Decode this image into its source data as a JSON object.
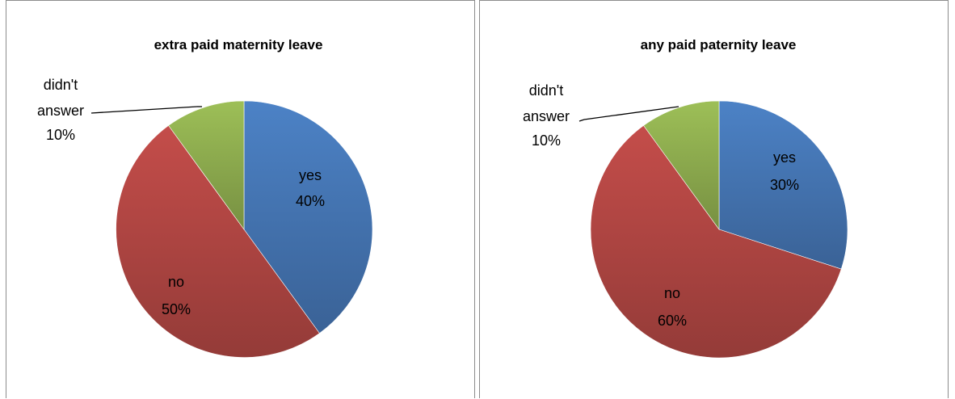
{
  "chart_data": [
    {
      "type": "pie",
      "title": "extra paid maternity leave",
      "slices": [
        {
          "label": "yes",
          "pct_label": "40%",
          "value": 40,
          "color": "#4A7EC0"
        },
        {
          "label": "no",
          "pct_label": "50%",
          "value": 50,
          "color": "#BE4B48"
        },
        {
          "label": "didn't answer",
          "pct_label": "10%",
          "value": 10,
          "color": "#98B954"
        }
      ],
      "start": "12 o'clock",
      "direction": "clockwise",
      "legend": "none"
    },
    {
      "type": "pie",
      "title": "any paid paternity leave",
      "slices": [
        {
          "label": "yes",
          "pct_label": "30%",
          "value": 30,
          "color": "#4A7EC0"
        },
        {
          "label": "no",
          "pct_label": "60%",
          "value": 60,
          "color": "#BE4B48"
        },
        {
          "label": "didn't answer",
          "pct_label": "10%",
          "value": 10,
          "color": "#98B954"
        }
      ],
      "start": "12 o'clock",
      "direction": "clockwise",
      "legend": "none"
    }
  ],
  "label_text": {
    "didnt_line1": "didn't",
    "didnt_line2": "answer"
  }
}
